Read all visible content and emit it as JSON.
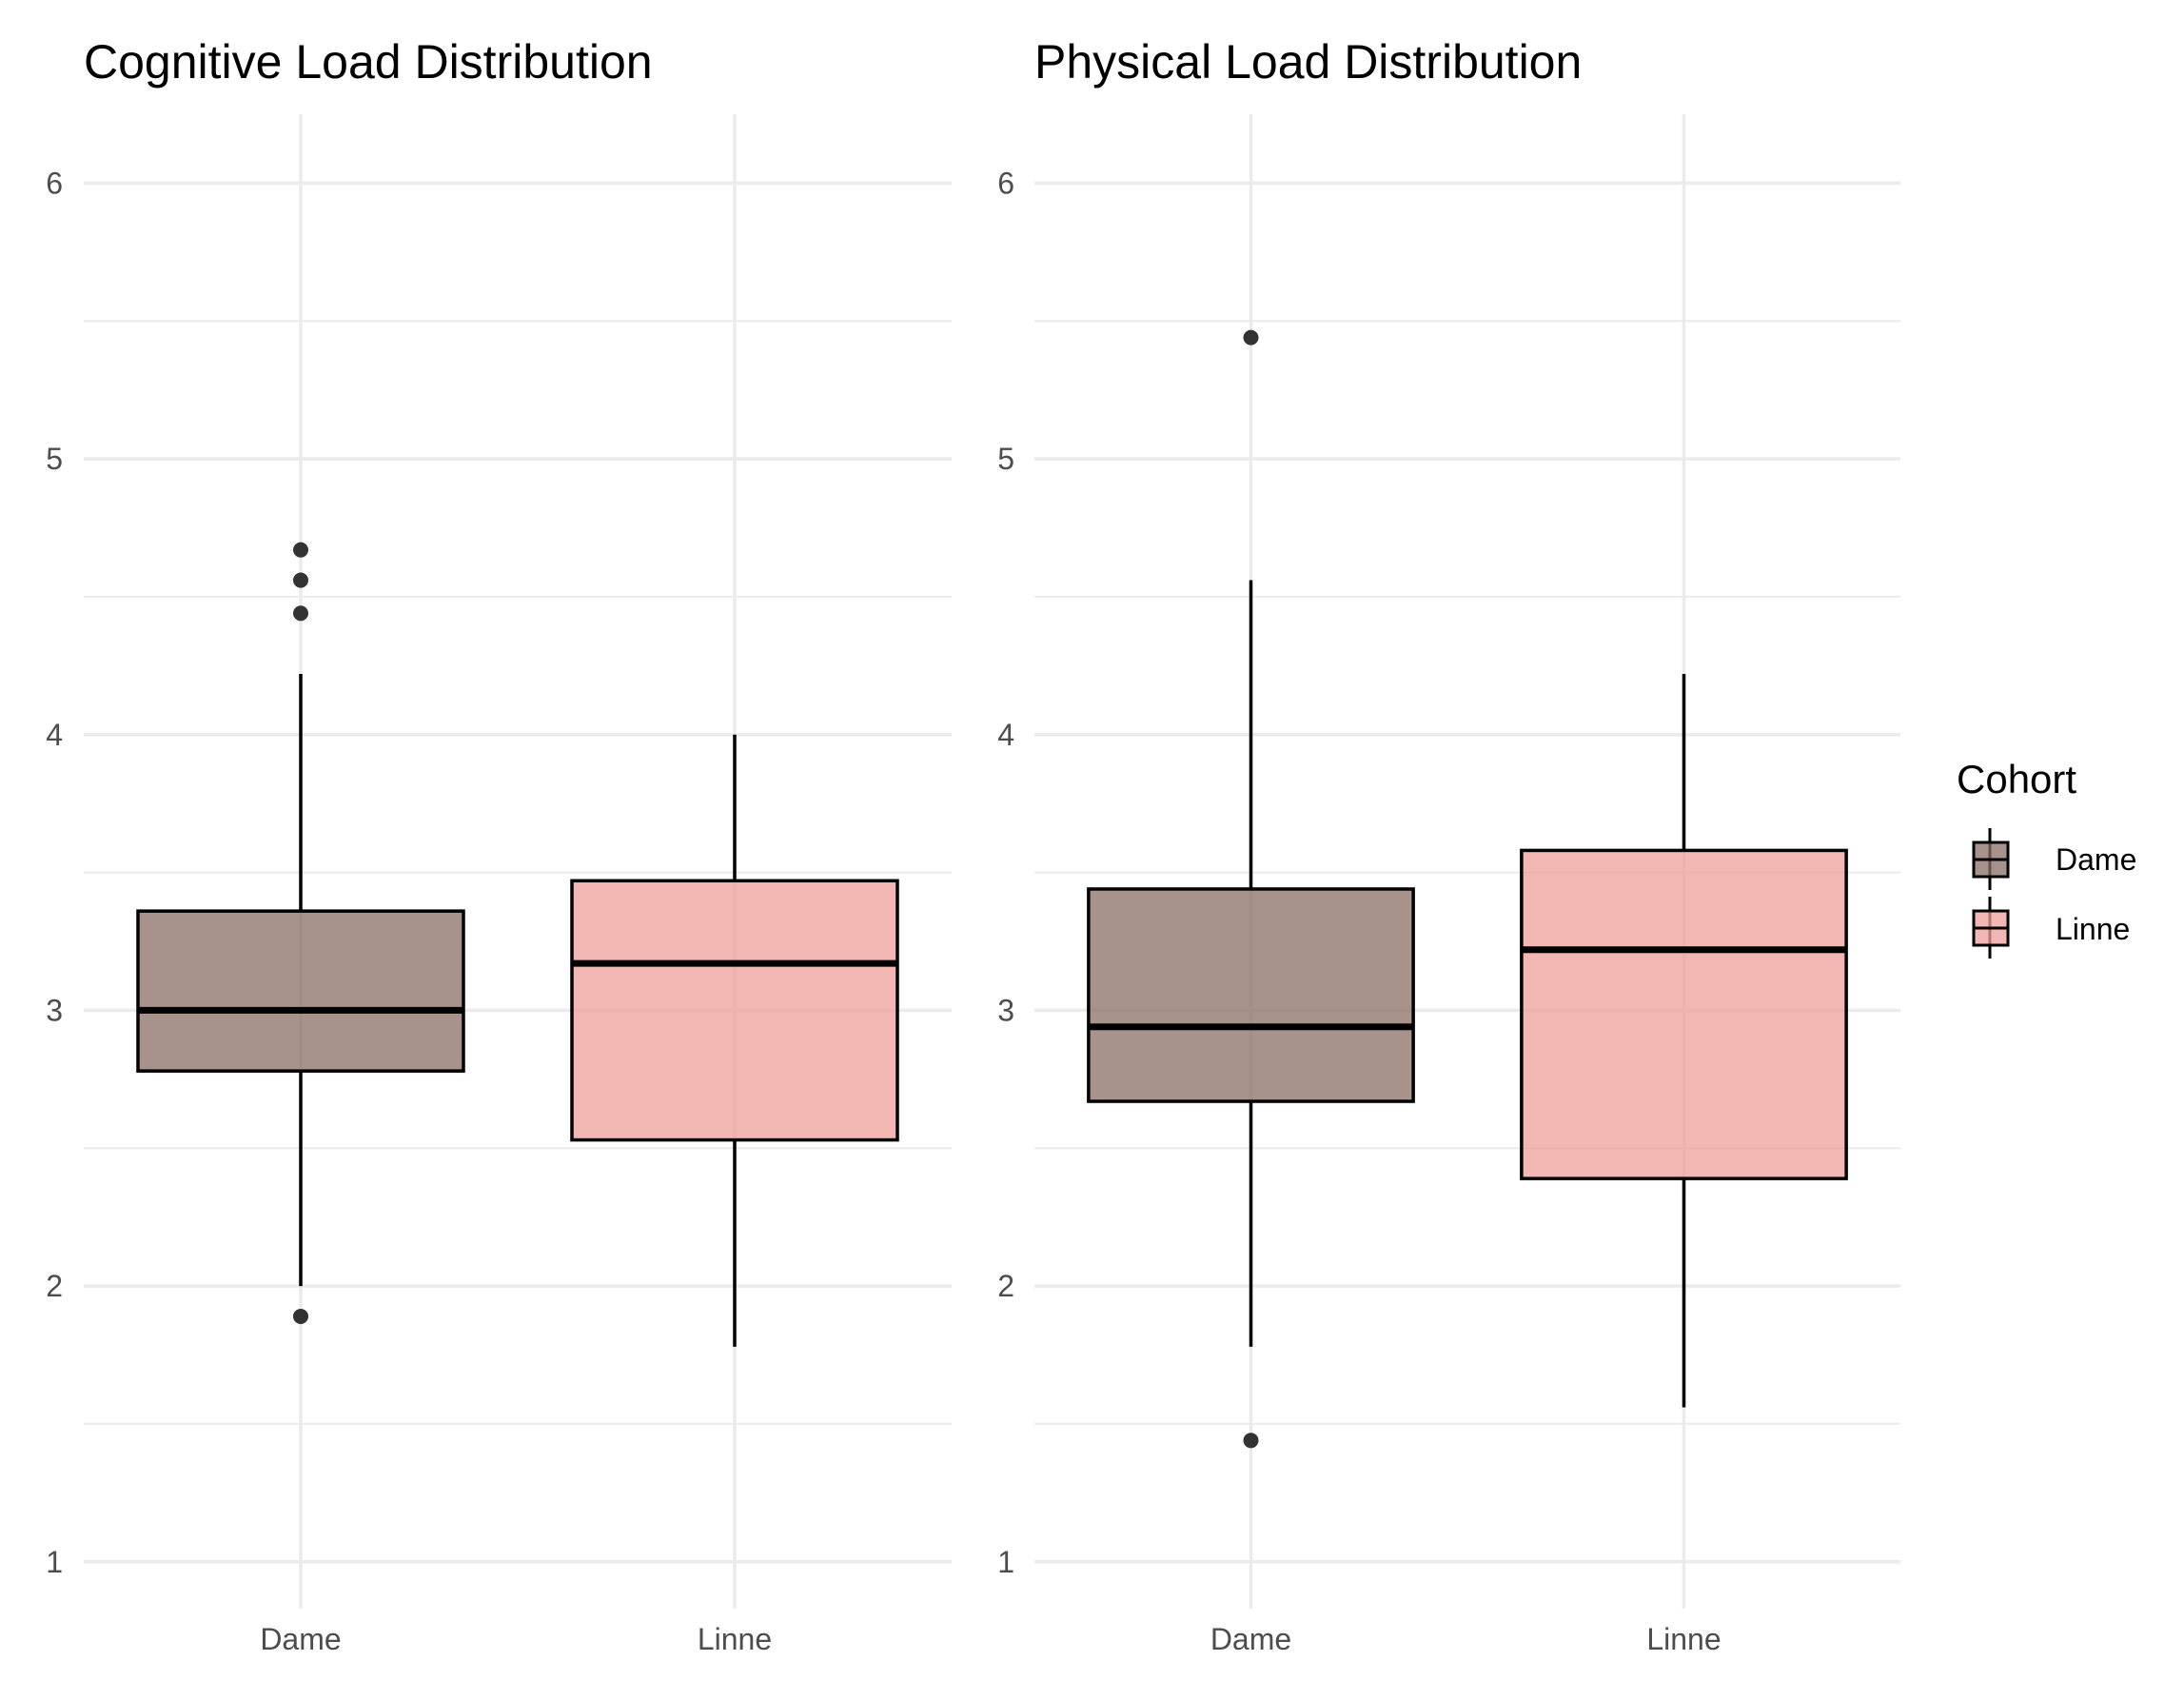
{
  "chart_data": [
    {
      "type": "boxplot",
      "title": "Cognitive Load Distribution",
      "xlabel": "",
      "ylabel": "",
      "ylim": [
        0.83,
        6.25
      ],
      "yticks": [
        1,
        2,
        3,
        4,
        5,
        6
      ],
      "grid": true,
      "categories": [
        "Dame",
        "Linne"
      ],
      "boxes": [
        {
          "category": "Dame",
          "q1": 2.78,
          "median": 3.0,
          "q3": 3.36,
          "whisker_low": 2.0,
          "whisker_high": 4.22,
          "outliers": [
            4.67,
            4.56,
            4.44,
            1.89
          ]
        },
        {
          "category": "Linne",
          "q1": 2.53,
          "median": 3.17,
          "q3": 3.47,
          "whisker_low": 1.78,
          "whisker_high": 4.0,
          "outliers": []
        }
      ]
    },
    {
      "type": "boxplot",
      "title": "Physical Load Distribution",
      "xlabel": "",
      "ylabel": "",
      "ylim": [
        0.83,
        6.25
      ],
      "yticks": [
        1,
        2,
        3,
        4,
        5,
        6
      ],
      "grid": true,
      "categories": [
        "Dame",
        "Linne"
      ],
      "boxes": [
        {
          "category": "Dame",
          "q1": 2.67,
          "median": 2.94,
          "q3": 3.44,
          "whisker_low": 1.78,
          "whisker_high": 4.56,
          "outliers": [
            5.44,
            1.44
          ]
        },
        {
          "category": "Linne",
          "q1": 2.39,
          "median": 3.22,
          "q3": 3.58,
          "whisker_low": 1.56,
          "whisker_high": 4.22,
          "outliers": []
        }
      ]
    }
  ],
  "legend": {
    "title": "Cohort",
    "placement": "right",
    "items": [
      {
        "label": "Dame",
        "color": "#8b6f66"
      },
      {
        "label": "Linne",
        "color": "#ee9d99"
      }
    ]
  },
  "colors": {
    "Dame": "#8b6f66",
    "Linne": "#ee9d99",
    "grid": "#ebebeb",
    "outlier": "#333333"
  }
}
